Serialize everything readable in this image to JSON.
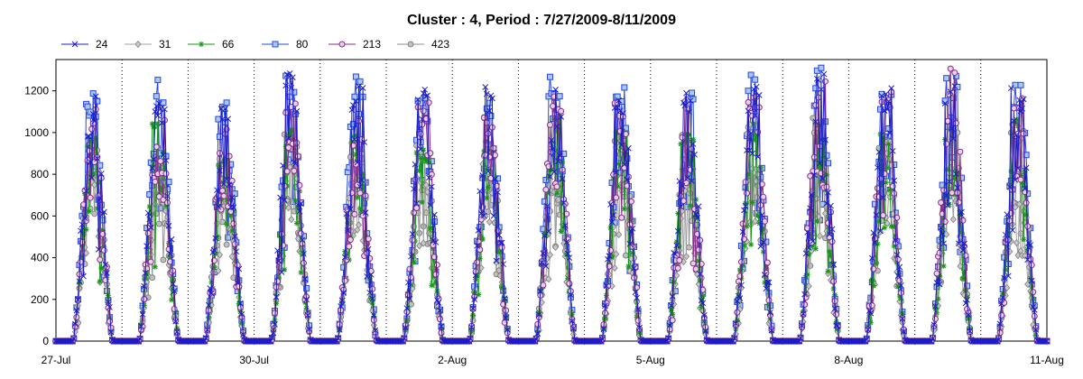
{
  "chart_data": {
    "type": "line",
    "title": "Cluster : 4, Period : 7/27/2009-8/11/2009",
    "xlabel": "",
    "ylabel": "",
    "x_range": [
      "2009-07-27",
      "2009-08-11"
    ],
    "ylim": [
      0,
      1350
    ],
    "y_ticks": [
      0,
      200,
      400,
      600,
      800,
      1000,
      1200
    ],
    "x_ticks": [
      {
        "date": "2009-07-27",
        "label": "27-Jul"
      },
      {
        "date": "2009-07-30",
        "label": "30-Jul"
      },
      {
        "date": "2009-08-02",
        "label": "2-Aug"
      },
      {
        "date": "2009-08-05",
        "label": "5-Aug"
      },
      {
        "date": "2009-08-08",
        "label": "8-Aug"
      },
      {
        "date": "2009-08-11",
        "label": "11-Aug"
      }
    ],
    "grid": "vertical dotted at each day",
    "legend": "top",
    "series": [
      {
        "name": "24",
        "color": "#1c1cc8",
        "marker": "x",
        "daily_peak": [
          1230,
          1190,
          1180,
          1300,
          1230,
          1230,
          1220,
          1250,
          1230,
          1240,
          1300,
          1300,
          1220,
          1240,
          1230
        ]
      },
      {
        "name": "31",
        "color": "#a0a0a0",
        "marker": "diamond",
        "daily_peak": [
          820,
          850,
          780,
          920,
          860,
          790,
          860,
          760,
          820,
          830,
          840,
          880,
          790,
          800,
          680
        ]
      },
      {
        "name": "66",
        "color": "#119911",
        "marker": "asterisk",
        "daily_peak": [
          980,
          1060,
          900,
          1030,
          1000,
          950,
          960,
          1100,
          1080,
          1000,
          1050,
          1080,
          1010,
          1030,
          1080
        ]
      },
      {
        "name": "80",
        "color": "#2846e6",
        "marker": "square",
        "daily_peak": [
          1200,
          1270,
          1170,
          1290,
          1280,
          1230,
          1190,
          1280,
          1230,
          1250,
          1290,
          1330,
          1230,
          1280,
          1300
        ]
      },
      {
        "name": "213",
        "color": "#8a2a8a",
        "marker": "circle",
        "daily_peak": [
          1120,
          1100,
          1080,
          1150,
          1120,
          1180,
          1100,
          1200,
          1150,
          1150,
          1200,
          1250,
          1200,
          1340,
          1180
        ]
      },
      {
        "name": "423",
        "color": "#909090",
        "marker": "circle-filled",
        "daily_peak": [
          950,
          980,
          900,
          1000,
          980,
          950,
          980,
          1050,
          1000,
          1000,
          1050,
          1080,
          1000,
          1100,
          1050
        ]
      }
    ]
  }
}
